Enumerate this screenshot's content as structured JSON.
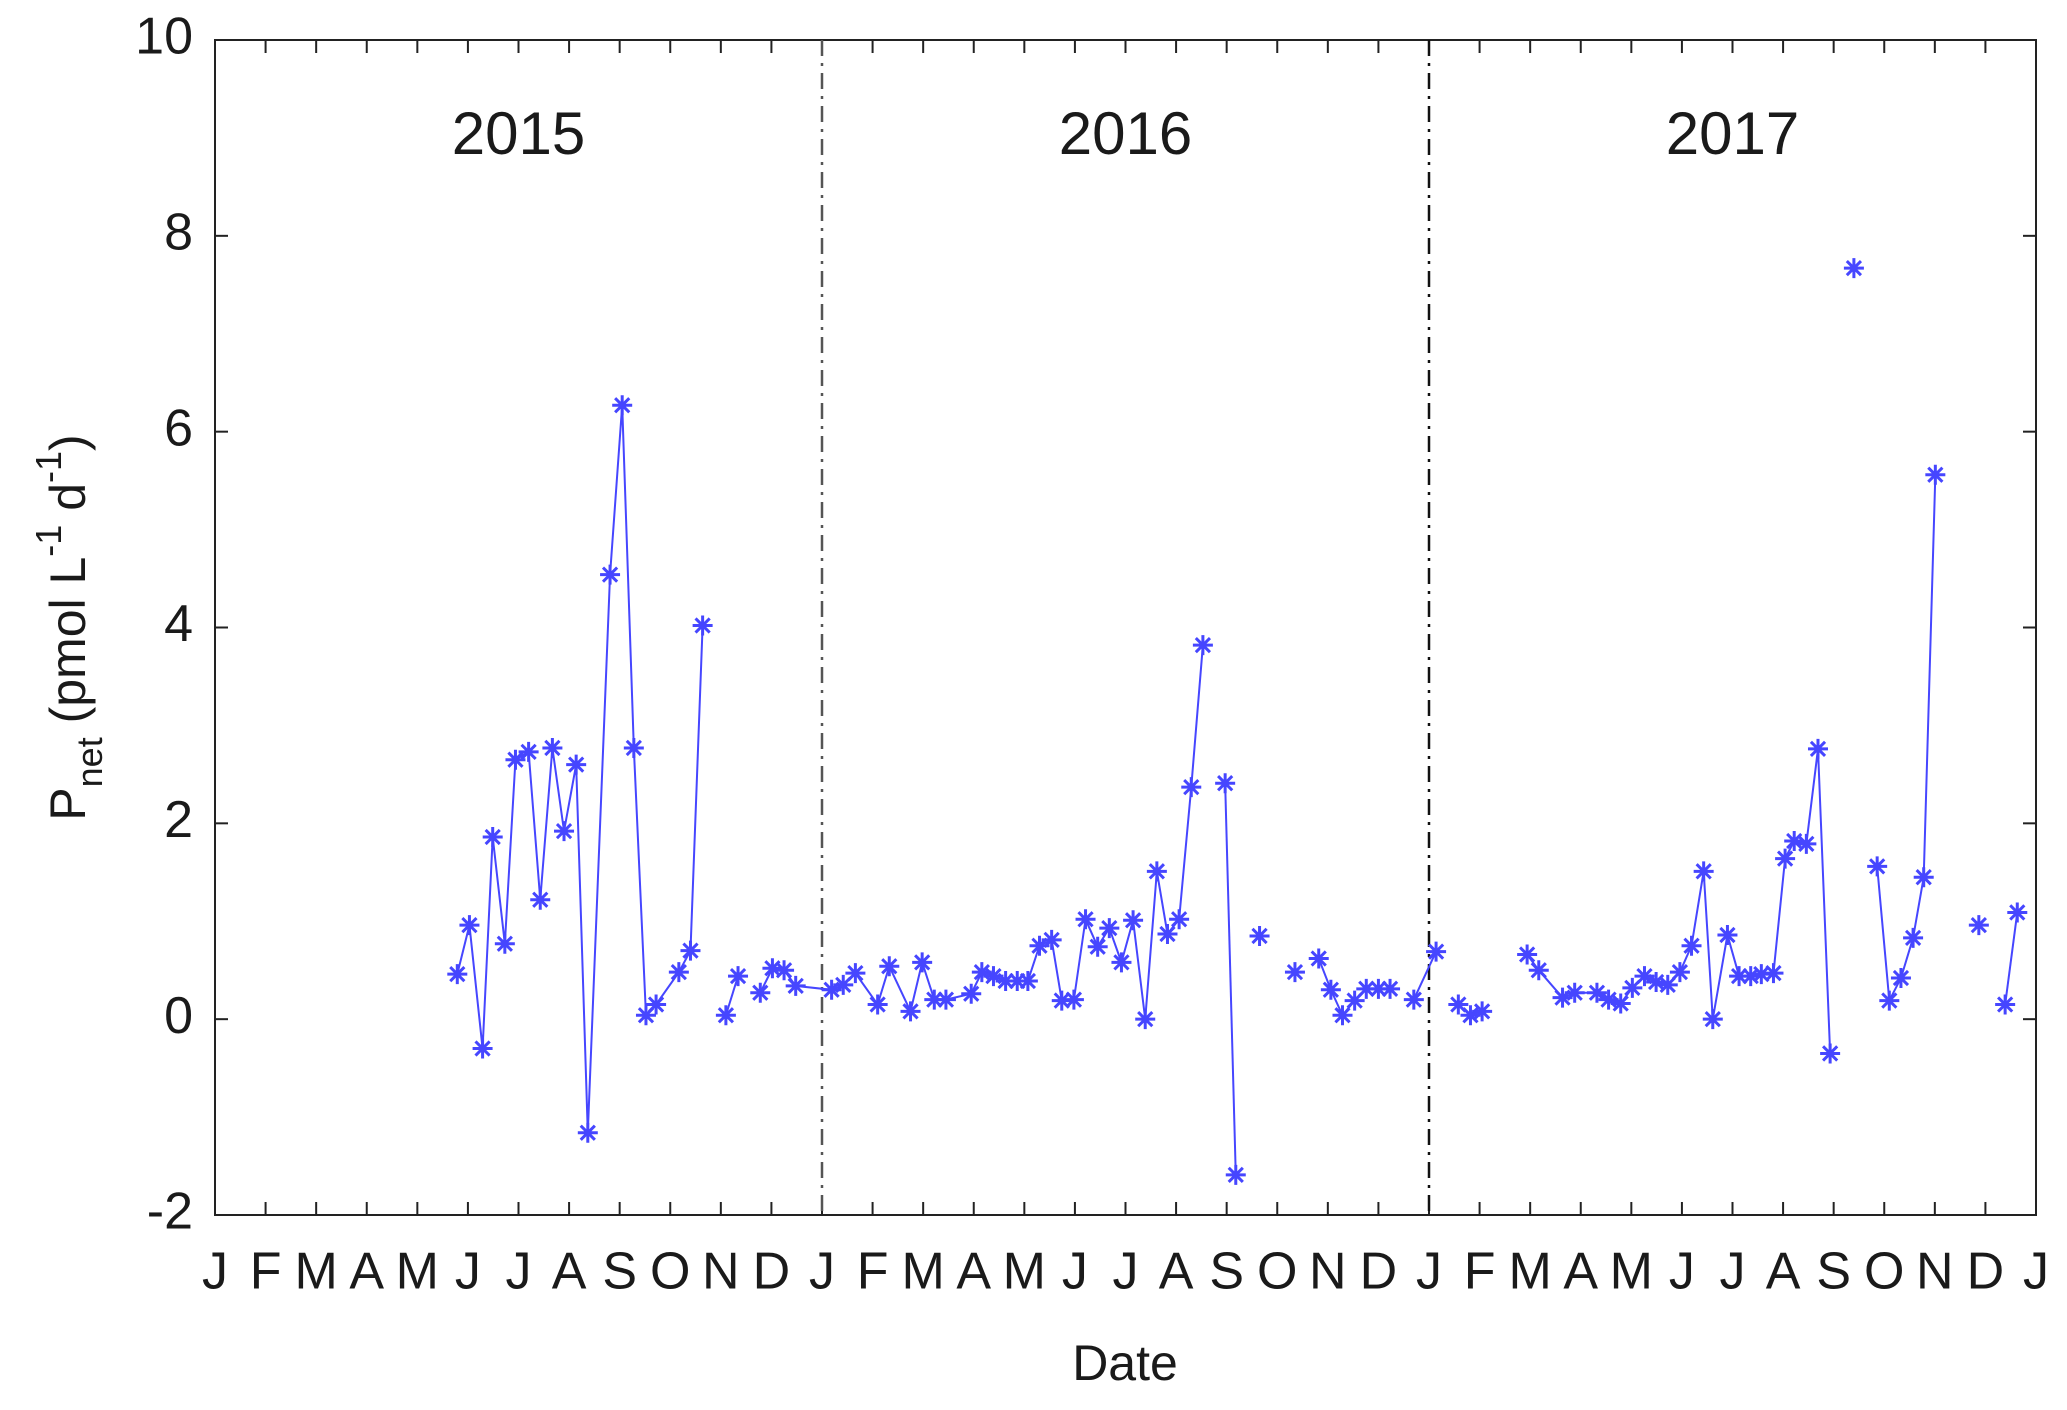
{
  "chart_data": {
    "type": "line",
    "xlabel": "Date",
    "ylabel": [
      {
        "text": "P"
      },
      {
        "text": "net",
        "shift": "sub"
      },
      {
        "text": " (pmol L"
      },
      {
        "text": "-1",
        "shift": "super"
      },
      {
        "text": " d"
      },
      {
        "text": "-1",
        "shift": "super"
      },
      {
        "text": ")"
      }
    ],
    "annotations": [
      "2015",
      "2016",
      "2017"
    ],
    "vlines": [
      12,
      24
    ],
    "xlim": [
      0,
      36
    ],
    "ylim": [
      -2,
      10
    ],
    "yticks": [
      -2,
      0,
      2,
      4,
      6,
      8,
      10
    ],
    "xticks": [
      {
        "value": 0,
        "label": "J"
      },
      {
        "value": 1,
        "label": "F"
      },
      {
        "value": 2,
        "label": "M"
      },
      {
        "value": 3,
        "label": "A"
      },
      {
        "value": 4,
        "label": "M"
      },
      {
        "value": 5,
        "label": "J"
      },
      {
        "value": 6,
        "label": "J"
      },
      {
        "value": 7,
        "label": "A"
      },
      {
        "value": 8,
        "label": "S"
      },
      {
        "value": 9,
        "label": "O"
      },
      {
        "value": 10,
        "label": "N"
      },
      {
        "value": 11,
        "label": "D"
      },
      {
        "value": 12,
        "label": "J"
      },
      {
        "value": 13,
        "label": "F"
      },
      {
        "value": 14,
        "label": "M"
      },
      {
        "value": 15,
        "label": "A"
      },
      {
        "value": 16,
        "label": "M"
      },
      {
        "value": 17,
        "label": "J"
      },
      {
        "value": 18,
        "label": "J"
      },
      {
        "value": 19,
        "label": "A"
      },
      {
        "value": 20,
        "label": "S"
      },
      {
        "value": 21,
        "label": "O"
      },
      {
        "value": 22,
        "label": "N"
      },
      {
        "value": 23,
        "label": "D"
      },
      {
        "value": 24,
        "label": "J"
      },
      {
        "value": 25,
        "label": "F"
      },
      {
        "value": 26,
        "label": "M"
      },
      {
        "value": 27,
        "label": "A"
      },
      {
        "value": 28,
        "label": "M"
      },
      {
        "value": 29,
        "label": "J"
      },
      {
        "value": 30,
        "label": "J"
      },
      {
        "value": 31,
        "label": "A"
      },
      {
        "value": 32,
        "label": "S"
      },
      {
        "value": 33,
        "label": "O"
      },
      {
        "value": 34,
        "label": "N"
      },
      {
        "value": 35,
        "label": "D"
      },
      {
        "value": 36,
        "label": "J"
      }
    ],
    "grid": false,
    "series": [
      {
        "color": "#4646ff",
        "x": [
          4.79,
          5.03,
          5.29,
          5.49,
          5.73,
          5.94,
          6.2,
          6.43,
          6.67,
          6.9,
          7.14,
          7.37,
          7.81,
          8.05,
          8.28,
          8.52,
          8.72,
          9.17,
          9.4,
          9.64,
          null,
          10.1,
          10.34,
          null,
          10.78,
          11.02,
          11.25,
          11.48,
          12.19,
          12.42,
          12.66,
          13.1,
          13.33,
          13.75,
          13.98,
          14.22,
          14.45,
          14.95,
          15.16,
          15.39,
          15.63,
          15.86,
          16.07,
          16.3,
          16.54,
          16.74,
          16.98,
          17.21,
          17.45,
          17.68,
          17.92,
          18.15,
          18.39,
          18.62,
          18.83,
          19.06,
          19.3,
          19.53,
          null,
          19.97,
          20.18,
          null,
          20.65,
          null,
          21.35,
          null,
          21.82,
          22.06,
          22.29,
          22.53,
          22.76,
          23.0,
          23.23,
          null,
          23.7,
          24.14,
          null,
          24.58,
          24.82,
          25.05,
          null,
          25.94,
          26.17,
          26.64,
          26.88,
          27.32,
          27.55,
          27.79,
          28.02,
          28.26,
          28.49,
          28.72,
          28.96,
          29.19,
          29.43,
          29.61,
          29.9,
          30.13,
          30.36,
          30.57,
          30.81,
          31.04,
          31.22,
          31.46,
          31.69,
          31.93,
          null,
          32.4,
          null,
          32.86,
          33.1,
          33.33,
          33.57,
          33.78,
          34.01,
          null,
          34.87,
          null,
          35.39,
          35.63
        ],
        "values": [
          0.46,
          0.96,
          -0.3,
          1.86,
          0.77,
          2.65,
          2.73,
          1.22,
          2.77,
          1.92,
          2.6,
          -1.16,
          4.54,
          6.27,
          2.77,
          0.04,
          0.15,
          0.48,
          0.7,
          4.02,
          null,
          0.04,
          0.44,
          null,
          0.27,
          0.52,
          0.5,
          0.34,
          0.3,
          0.35,
          0.47,
          0.15,
          0.54,
          0.08,
          0.58,
          0.2,
          0.2,
          0.26,
          0.48,
          0.44,
          0.39,
          0.39,
          0.39,
          0.75,
          0.81,
          0.19,
          0.2,
          1.02,
          0.74,
          0.93,
          0.58,
          1.01,
          0.0,
          1.51,
          0.87,
          1.02,
          2.37,
          3.82,
          null,
          2.41,
          -1.59,
          null,
          0.85,
          null,
          0.48,
          null,
          0.62,
          0.3,
          0.04,
          0.19,
          0.31,
          0.31,
          0.31,
          null,
          0.2,
          0.69,
          null,
          0.15,
          0.04,
          0.08,
          null,
          0.66,
          0.5,
          0.22,
          0.27,
          0.27,
          0.2,
          0.16,
          0.32,
          0.44,
          0.38,
          0.35,
          0.48,
          0.75,
          1.51,
          0.0,
          0.86,
          0.44,
          0.44,
          0.46,
          0.47,
          1.64,
          1.82,
          1.79,
          2.76,
          -0.35,
          null,
          7.67,
          null,
          1.56,
          0.19,
          0.42,
          0.83,
          1.45,
          5.56,
          null,
          0.96,
          null,
          0.15,
          1.09
        ]
      }
    ]
  }
}
